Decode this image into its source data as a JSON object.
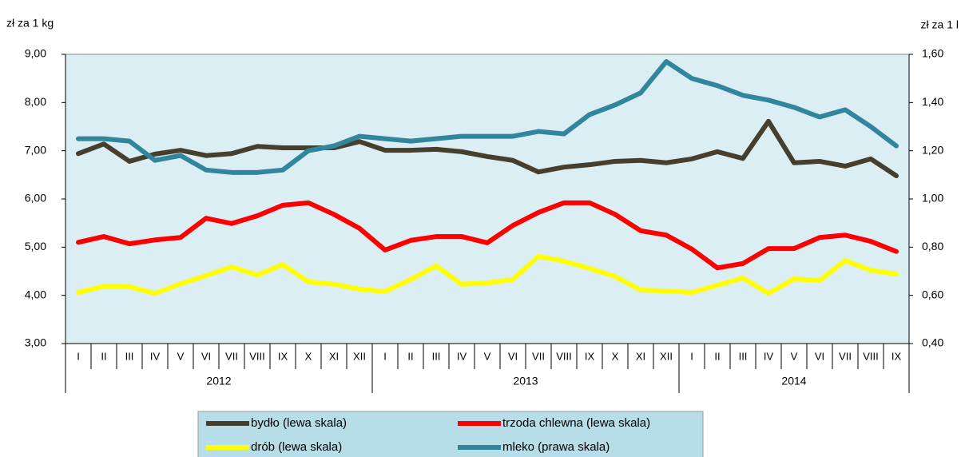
{
  "chart_data": {
    "type": "line",
    "y_label": "zł za 1 kg",
    "y2_label": "zł za 1 l",
    "categories": [
      "I",
      "II",
      "III",
      "IV",
      "V",
      "VI",
      "VII",
      "VIII",
      "IX",
      "X",
      "XI",
      "XII",
      "I",
      "II",
      "III",
      "IV",
      "V",
      "VI",
      "VII",
      "VIII",
      "IX",
      "X",
      "XI",
      "XII",
      "I",
      "II",
      "III",
      "IV",
      "V",
      "VI",
      "VII",
      "VIII",
      "IX"
    ],
    "x_groups": [
      "2012",
      "2013",
      "2014"
    ],
    "ylim": [
      3,
      9
    ],
    "yticks": [
      {
        "value": 3,
        "label": "3,00"
      },
      {
        "value": 4,
        "label": "4,00"
      },
      {
        "value": 5,
        "label": "5,00"
      },
      {
        "value": 6,
        "label": "6,00"
      },
      {
        "value": 7,
        "label": "7,00"
      },
      {
        "value": 8,
        "label": "8,00"
      },
      {
        "value": 9,
        "label": "9,00"
      }
    ],
    "y2lim": [
      0.4,
      1.6
    ],
    "y2ticks": [
      {
        "value": 0.4,
        "label": "0,40"
      },
      {
        "value": 0.6,
        "label": "0,60"
      },
      {
        "value": 0.8,
        "label": "0,80"
      },
      {
        "value": 1.0,
        "label": "1,00"
      },
      {
        "value": 1.2,
        "label": "1,20"
      },
      {
        "value": 1.4,
        "label": "1,40"
      },
      {
        "value": 1.6,
        "label": "1,60"
      }
    ],
    "legend": "bottom",
    "background": "#dbeef4",
    "series": [
      {
        "name": "bydło (lewa skala)",
        "color": "#463f2e",
        "values": [
          6.94,
          7.14,
          6.78,
          6.93,
          7.01,
          6.9,
          6.94,
          7.09,
          7.06,
          7.06,
          7.06,
          7.19,
          7.01,
          7.01,
          7.03,
          6.98,
          6.88,
          6.8,
          6.56,
          6.66,
          6.71,
          6.78,
          6.8,
          6.75,
          6.83,
          6.98,
          6.84,
          7.61,
          6.75,
          6.78,
          6.68,
          6.83,
          6.48
        ]
      },
      {
        "name": "trzoda chlewna (lewa skala)",
        "color": "#ff0000",
        "values": [
          5.1,
          5.22,
          5.07,
          5.15,
          5.2,
          5.6,
          5.49,
          5.65,
          5.87,
          5.92,
          5.68,
          5.39,
          4.94,
          5.14,
          5.22,
          5.22,
          5.09,
          5.45,
          5.72,
          5.92,
          5.92,
          5.68,
          5.34,
          5.25,
          4.96,
          4.57,
          4.66,
          4.97,
          4.97,
          5.2,
          5.25,
          5.12,
          4.91
        ]
      },
      {
        "name": "drób (lewa skala)",
        "color": "#ffff00",
        "values": [
          4.06,
          4.19,
          4.18,
          4.04,
          4.24,
          4.41,
          4.59,
          4.42,
          4.64,
          4.28,
          4.23,
          4.13,
          4.08,
          4.33,
          4.61,
          4.23,
          4.26,
          4.33,
          4.81,
          4.71,
          4.56,
          4.39,
          4.11,
          4.09,
          4.06,
          4.21,
          4.36,
          4.04,
          4.34,
          4.31,
          4.72,
          4.52,
          4.44
        ]
      },
      {
        "name": "mleko (prawa skala)",
        "color": "#31859c",
        "axis": "y2",
        "values": [
          1.25,
          1.25,
          1.24,
          1.16,
          1.18,
          1.12,
          1.11,
          1.11,
          1.12,
          1.2,
          1.22,
          1.26,
          1.25,
          1.24,
          1.25,
          1.26,
          1.26,
          1.26,
          1.28,
          1.27,
          1.35,
          1.39,
          1.44,
          1.57,
          1.5,
          1.47,
          1.43,
          1.41,
          1.38,
          1.34,
          1.37,
          1.3,
          1.22
        ]
      }
    ]
  }
}
